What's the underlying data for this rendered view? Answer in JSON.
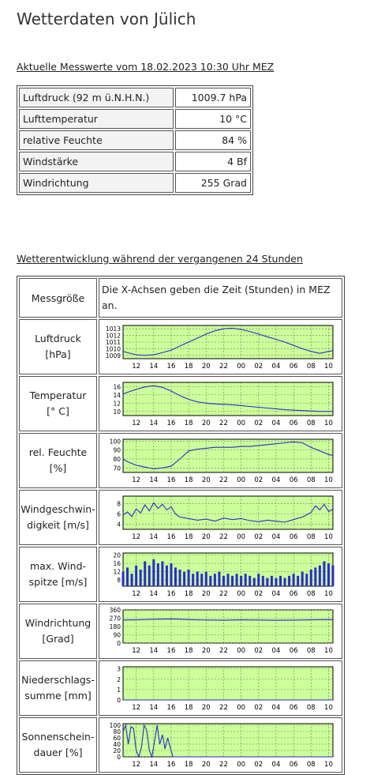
{
  "page": {
    "title": "Wetterdaten von Jülich",
    "current_heading": "Aktuelle Messwerte vom 18.02.2023 10:30 Uhr MEZ",
    "history_heading": "Wetterentwicklung während der vergangenen 24 Stunden"
  },
  "current": [
    {
      "label": "Luftdruck (92 m ü.N.H.N.)",
      "value": "1009.7 hPa"
    },
    {
      "label": "Lufttemperatur",
      "value": "10 °C"
    },
    {
      "label": "relative Feuchte",
      "value": "84 %"
    },
    {
      "label": "Windstärke",
      "value": "4 Bf"
    },
    {
      "label": "Windrichtung",
      "value": "255 Grad"
    }
  ],
  "history": {
    "header_name": "Messgröße",
    "header_note": "Die X-Achsen geben die Zeit (Stunden) in MEZ an.",
    "x_ticks": [
      "12",
      "14",
      "16",
      "18",
      "20",
      "22",
      "00",
      "02",
      "04",
      "06",
      "08",
      "10"
    ]
  },
  "chart_data": [
    {
      "type": "line",
      "name_line1": "Luftdruck",
      "name_line2": "[hPa]",
      "yticks": [
        "1013",
        "1012",
        "1011",
        "1010",
        "1009"
      ],
      "ylim": [
        1008.5,
        1013.5
      ],
      "x": [
        10.5,
        11,
        12,
        13,
        14,
        15,
        16,
        17,
        18,
        19,
        20,
        21,
        22,
        23,
        24,
        25,
        26,
        27,
        28,
        29,
        30,
        31,
        32,
        33,
        34,
        34.5
      ],
      "y": [
        1009.6,
        1009.4,
        1009.1,
        1009.0,
        1009.1,
        1009.4,
        1009.8,
        1010.4,
        1011.0,
        1011.6,
        1012.2,
        1012.7,
        1013.0,
        1013.1,
        1012.9,
        1012.6,
        1012.2,
        1011.8,
        1011.4,
        1011.0,
        1010.5,
        1010.0,
        1009.6,
        1009.3,
        1009.6,
        1009.7
      ],
      "grid": true,
      "color": "#2b2bcc"
    },
    {
      "type": "line",
      "name_line1": "Temperatur",
      "name_line2": "[° C]",
      "yticks": [
        "16",
        "14",
        "12",
        "10"
      ],
      "ylim": [
        9,
        17
      ],
      "x": [
        10.5,
        11,
        12,
        13,
        14,
        15,
        16,
        17,
        18,
        19,
        20,
        21,
        22,
        23,
        24,
        25,
        26,
        27,
        28,
        29,
        30,
        31,
        32,
        33,
        34,
        34.5
      ],
      "y": [
        14.2,
        14.6,
        15.3,
        15.9,
        16.2,
        15.8,
        14.9,
        13.8,
        12.9,
        12.3,
        12.0,
        11.8,
        11.7,
        11.6,
        11.4,
        11.2,
        11.0,
        10.8,
        10.6,
        10.4,
        10.3,
        10.2,
        10.1,
        10.0,
        10.0,
        10.0
      ],
      "grid": true,
      "color": "#2b2bcc"
    },
    {
      "type": "line",
      "name_line1": "rel. Feuchte",
      "name_line2": "[%]",
      "yticks": [
        "100",
        "90",
        "80",
        "70"
      ],
      "ylim": [
        65,
        102
      ],
      "x": [
        10.5,
        11,
        12,
        13,
        14,
        15,
        16,
        17,
        18,
        19,
        20,
        21,
        22,
        23,
        24,
        25,
        26,
        27,
        28,
        29,
        30,
        31,
        32,
        33,
        34,
        34.5
      ],
      "y": [
        80,
        77,
        73,
        71,
        69,
        70,
        72,
        80,
        89,
        91,
        92,
        93,
        93,
        93,
        94,
        94,
        95,
        96,
        97,
        98,
        99,
        98,
        93,
        89,
        85,
        84
      ],
      "grid": true,
      "color": "#2b2bcc"
    },
    {
      "type": "line",
      "name_line1": "Windgeschwin-",
      "name_line2": "digkeit [m/s]",
      "yticks": [
        "8",
        "6",
        "4"
      ],
      "ylim": [
        3,
        9.5
      ],
      "x": [
        10.5,
        11,
        11.5,
        12,
        12.5,
        13,
        13.5,
        14,
        14.5,
        15,
        15.5,
        16,
        16.5,
        17,
        18,
        19,
        20,
        21,
        22,
        23,
        24,
        25,
        26,
        27,
        28,
        29,
        30,
        31,
        32,
        32.5,
        33,
        33.5,
        34,
        34.5
      ],
      "y": [
        5.8,
        6.4,
        5.5,
        7.0,
        6.2,
        7.8,
        6.6,
        8.2,
        7.1,
        7.9,
        6.8,
        7.4,
        6.0,
        5.4,
        5.1,
        4.8,
        5.0,
        4.6,
        5.2,
        4.9,
        5.1,
        4.7,
        4.5,
        4.8,
        4.6,
        4.4,
        4.9,
        5.4,
        6.3,
        7.6,
        6.8,
        7.9,
        6.5,
        6.9
      ],
      "grid": true,
      "color": "#2b2bcc"
    },
    {
      "type": "bar",
      "name_line1": "max. Wind-",
      "name_line2": "spitze [m/s]",
      "yticks": [
        "20",
        "16",
        "12",
        "8"
      ],
      "ylim": [
        5,
        21
      ],
      "x": [
        10.5,
        11,
        11.5,
        12,
        12.5,
        13,
        13.5,
        14,
        14.5,
        15,
        15.5,
        16,
        16.5,
        17,
        17.5,
        18,
        18.5,
        19,
        19.5,
        20,
        20.5,
        21,
        21.5,
        22,
        22.5,
        23,
        23.5,
        24,
        24.5,
        25,
        25.5,
        26,
        26.5,
        27,
        27.5,
        28,
        28.5,
        29,
        29.5,
        30,
        30.5,
        31,
        31.5,
        32,
        32.5,
        33,
        33.5,
        34,
        34.5
      ],
      "y": [
        12,
        14,
        11,
        15,
        13,
        17,
        15,
        18,
        16,
        17,
        15,
        16,
        14,
        13,
        12,
        13,
        11,
        12,
        11,
        12,
        10,
        11,
        12,
        10,
        11,
        10,
        11,
        10,
        11,
        10,
        9,
        11,
        10,
        9,
        10,
        9,
        10,
        9,
        10,
        11,
        10,
        12,
        11,
        13,
        14,
        15,
        17,
        16,
        15
      ],
      "grid": true,
      "color": "#2b2bcc"
    },
    {
      "type": "line",
      "name_line1": "Windrichtung",
      "name_line2": "[Grad]",
      "yticks": [
        "360",
        "270",
        "180",
        "90",
        "0"
      ],
      "ylim": [
        0,
        360
      ],
      "x": [
        10.5,
        12,
        14,
        16,
        18,
        20,
        22,
        24,
        26,
        28,
        30,
        32,
        34,
        34.5
      ],
      "y": [
        250,
        252,
        258,
        262,
        255,
        250,
        248,
        252,
        250,
        247,
        249,
        252,
        255,
        255
      ],
      "grid": true,
      "color": "#2b2bcc"
    },
    {
      "type": "line",
      "name_line1": "Niederschlags-",
      "name_line2": "summe [mm]",
      "yticks": [
        "3",
        "2",
        "1",
        "0"
      ],
      "ylim": [
        0,
        3.2
      ],
      "x": [
        10.5,
        34.5
      ],
      "y": [
        0,
        0
      ],
      "grid": true,
      "color": "#2b2bcc"
    },
    {
      "type": "line",
      "name_line1": "Sonnenschein-",
      "name_line2": "dauer [%]",
      "yticks": [
        "100",
        "80",
        "60",
        "40",
        "20",
        "0"
      ],
      "ylim": [
        0,
        105
      ],
      "x": [
        10.5,
        10.8,
        11.1,
        11.4,
        11.7,
        12.0,
        12.3,
        12.6,
        12.9,
        13.2,
        13.5,
        13.8,
        14.1,
        14.4,
        14.7,
        15.0,
        15.3,
        15.6,
        15.9,
        16.2,
        16.5,
        34.5
      ],
      "y": [
        80,
        100,
        40,
        95,
        90,
        20,
        0,
        30,
        100,
        85,
        20,
        0,
        50,
        100,
        40,
        70,
        25,
        60,
        30,
        0,
        0,
        0
      ],
      "grid": true,
      "color": "#2b2bcc"
    }
  ]
}
